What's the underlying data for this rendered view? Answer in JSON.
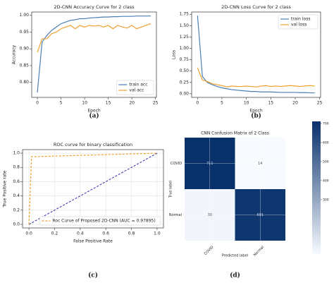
{
  "chart_data": [
    {
      "type": "line",
      "title": "2D-CNN Accuracy Curve for 2 class",
      "xlabel": "Epoch",
      "ylabel": "Accuracy",
      "panel_label": "(a)",
      "x": [
        0,
        1,
        2,
        3,
        4,
        5,
        6,
        7,
        8,
        9,
        10,
        11,
        12,
        13,
        14,
        15,
        16,
        17,
        18,
        19,
        20,
        21,
        22,
        23,
        24
      ],
      "series": [
        {
          "name": "train acc",
          "color": "#4a7fb5",
          "values": [
            0.77,
            0.92,
            0.94,
            0.955,
            0.965,
            0.975,
            0.98,
            0.985,
            0.987,
            0.99,
            0.99,
            0.992,
            0.993,
            0.994,
            0.995,
            0.995,
            0.996,
            0.996,
            0.997,
            0.997,
            0.997,
            0.998,
            0.998,
            0.998,
            0.998
          ]
        },
        {
          "name": "val acc",
          "color": "#f0a030",
          "values": [
            0.89,
            0.93,
            0.93,
            0.945,
            0.95,
            0.96,
            0.965,
            0.97,
            0.96,
            0.97,
            0.965,
            0.97,
            0.968,
            0.97,
            0.965,
            0.97,
            0.96,
            0.97,
            0.965,
            0.962,
            0.97,
            0.96,
            0.965,
            0.97,
            0.975
          ]
        }
      ],
      "xlim": [
        -1.2,
        25.2
      ],
      "xticks": [
        0,
        5,
        10,
        15,
        20,
        25
      ],
      "ylim": [
        0.755,
        1.01
      ],
      "yticks": [
        {
          "value": 0.8,
          "label": "0.80"
        },
        {
          "value": 0.85,
          "label": "0.85"
        },
        {
          "value": 0.9,
          "label": "0.90"
        },
        {
          "value": 0.95,
          "label": "0.95"
        },
        {
          "value": 1,
          "label": "1.00"
        }
      ],
      "legend": "lower right",
      "grid": false
    },
    {
      "type": "line",
      "title": "2D-CNN Loss Curve for 2 class",
      "xlabel": "Epoch",
      "ylabel": "Loss",
      "panel_label": "(b)",
      "x": [
        0,
        1,
        2,
        3,
        4,
        5,
        6,
        7,
        8,
        9,
        10,
        11,
        12,
        13,
        14,
        15,
        16,
        17,
        18,
        19,
        20,
        21,
        22,
        23,
        24
      ],
      "series": [
        {
          "name": "train loss",
          "color": "#4a7fb5",
          "values": [
            1.72,
            0.38,
            0.25,
            0.2,
            0.16,
            0.13,
            0.11,
            0.09,
            0.08,
            0.07,
            0.06,
            0.05,
            0.05,
            0.04,
            0.04,
            0.04,
            0.035,
            0.03,
            0.03,
            0.03,
            0.03,
            0.025,
            0.025,
            0.02,
            0.02
          ]
        },
        {
          "name": "val loss",
          "color": "#f0a030",
          "values": [
            0.57,
            0.3,
            0.27,
            0.22,
            0.2,
            0.18,
            0.15,
            0.17,
            0.16,
            0.16,
            0.17,
            0.16,
            0.15,
            0.17,
            0.18,
            0.16,
            0.17,
            0.16,
            0.17,
            0.18,
            0.17,
            0.16,
            0.17,
            0.18,
            0.17
          ]
        }
      ],
      "xlim": [
        -1.2,
        25.2
      ],
      "xticks": [
        0,
        5,
        10,
        15,
        20,
        25
      ],
      "ylim": [
        -0.08,
        1.8
      ],
      "yticks": [
        {
          "value": 0,
          "label": "0.00"
        },
        {
          "value": 0.25,
          "label": "0.25"
        },
        {
          "value": 0.5,
          "label": "0.50"
        },
        {
          "value": 0.75,
          "label": "0.75"
        },
        {
          "value": 1,
          "label": "1.00"
        },
        {
          "value": 1.25,
          "label": "1.25"
        },
        {
          "value": 1.5,
          "label": "1.50"
        },
        {
          "value": 1.75,
          "label": "1.75"
        }
      ],
      "legend": "upper right",
      "grid": false
    },
    {
      "type": "line",
      "title": "ROC curve for binary classification",
      "xlabel": "False Positive Rate",
      "ylabel": "True Positive rate",
      "panel_label": "(c)",
      "series": [
        {
          "name": "Roc Curve of Proposed 2D-CNN (AUC = 0.97895)",
          "color": "#f0a030",
          "line_style": "dashed",
          "x": [
            0,
            0.02,
            1
          ],
          "values": [
            0,
            0.95,
            1
          ]
        }
      ],
      "diagonal": {
        "x": [
          0,
          1
        ],
        "values": [
          0,
          1
        ],
        "color": "#2a2aa8"
      },
      "xlim": [
        -0.05,
        1.05
      ],
      "xticks": [
        {
          "value": 0,
          "label": "0.0"
        },
        {
          "value": 0.2,
          "label": "0.2"
        },
        {
          "value": 0.4,
          "label": "0.4"
        },
        {
          "value": 0.6,
          "label": "0.6"
        },
        {
          "value": 0.8,
          "label": "0.8"
        },
        {
          "value": 1,
          "label": "1.0"
        }
      ],
      "ylim": [
        -0.05,
        1.05
      ],
      "yticks": [
        {
          "value": 0,
          "label": "0.0"
        },
        {
          "value": 0.2,
          "label": "0.2"
        },
        {
          "value": 0.4,
          "label": "0.4"
        },
        {
          "value": 0.6,
          "label": "0.6"
        },
        {
          "value": 0.8,
          "label": "0.8"
        },
        {
          "value": 1,
          "label": "1.0"
        }
      ],
      "legend": "lower right",
      "grid": true
    },
    {
      "type": "heatmap",
      "title": "CNN Confusion Matrix of 2 Class",
      "xlabel": "Predicted label",
      "ylabel": "True label",
      "panel_label": "(d)",
      "x_categories": [
        "COVID",
        "Normal"
      ],
      "y_categories": [
        "COVID",
        "Normal"
      ],
      "values": [
        [
          711,
          14
        ],
        [
          30,
          691
        ]
      ],
      "clim": [
        14,
        711
      ],
      "colorbar_ticks": [
        300,
        400,
        500,
        600,
        700
      ],
      "colormap": [
        "#f7fbff",
        "#08306b"
      ]
    }
  ]
}
